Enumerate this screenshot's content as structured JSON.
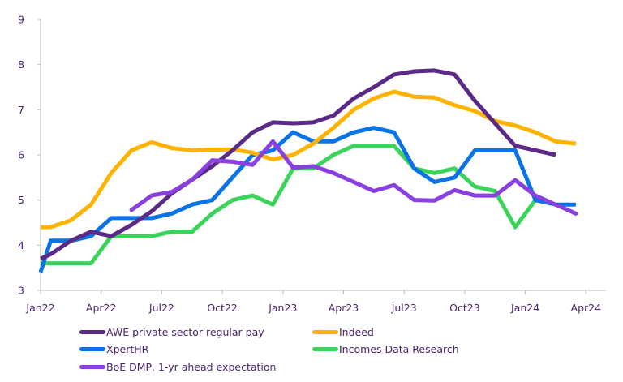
{
  "chart_data": {
    "type": "line",
    "title": "",
    "xlabel": "",
    "ylabel": "",
    "ylim": [
      3,
      9
    ],
    "yticks": [
      "3",
      "4",
      "5",
      "6",
      "7",
      "8",
      "9"
    ],
    "xticks": [
      "Jan22",
      "Apr22",
      "Jul22",
      "Oct22",
      "Jan23",
      "Apr23",
      "Jul23",
      "Oct23",
      "Jan24",
      "Apr24"
    ],
    "x_months_from_jan22": [
      0,
      0.5,
      1.5,
      2.5,
      3.5,
      4.5,
      5.5,
      6.5,
      7.5,
      8.5,
      9.5,
      10.5,
      11.5,
      12.5,
      13.5,
      14.5,
      15.5,
      16.5,
      17.5,
      18.5,
      19.5,
      20.5,
      21.5,
      22.5,
      23.5,
      24.5,
      25.5,
      26.5
    ],
    "grid": false,
    "legend_position": "bottom",
    "series": [
      {
        "name": "AWE private sector regular pay",
        "color": "#5b2a86",
        "values": [
          3.7,
          3.8,
          4.1,
          4.3,
          4.2,
          4.45,
          4.75,
          5.15,
          5.45,
          5.75,
          6.1,
          6.5,
          6.72,
          6.7,
          6.72,
          6.87,
          7.25,
          7.5,
          7.78,
          7.85,
          7.87,
          7.78,
          7.2,
          6.7,
          6.2,
          6.1,
          6.0,
          null
        ]
      },
      {
        "name": "Indeed",
        "color": "#ffb300",
        "values": [
          4.4,
          4.4,
          4.55,
          4.9,
          5.6,
          6.1,
          6.28,
          6.15,
          6.1,
          6.12,
          6.12,
          6.05,
          5.9,
          6.0,
          6.25,
          6.6,
          7.0,
          7.25,
          7.4,
          7.29,
          7.27,
          7.1,
          6.97,
          6.75,
          6.65,
          6.5,
          6.3,
          6.25
        ]
      },
      {
        "name": "XpertHR",
        "color": "#0a73e6",
        "values": [
          3.4,
          4.1,
          4.1,
          4.2,
          4.6,
          4.6,
          4.6,
          4.7,
          4.9,
          5.0,
          5.5,
          6.0,
          6.1,
          6.5,
          6.3,
          6.3,
          6.5,
          6.6,
          6.5,
          5.7,
          5.4,
          5.5,
          6.1,
          6.1,
          6.1,
          5.0,
          4.9,
          4.9
        ]
      },
      {
        "name": "Incomes Data Research",
        "color": "#3ad45a",
        "values": [
          3.6,
          3.6,
          3.6,
          3.6,
          4.2,
          4.2,
          4.2,
          4.3,
          4.3,
          4.7,
          5.0,
          5.1,
          4.9,
          5.7,
          5.7,
          6.0,
          6.2,
          6.2,
          6.2,
          5.7,
          5.6,
          5.7,
          5.3,
          5.2,
          4.4,
          5.0,
          null,
          null
        ]
      },
      {
        "name": "BoE DMP, 1-yr ahead expectation",
        "color": "#8a3fe0",
        "values": [
          null,
          null,
          null,
          null,
          null,
          4.78,
          5.1,
          5.18,
          5.45,
          5.88,
          5.85,
          5.78,
          6.3,
          5.72,
          5.75,
          5.6,
          5.4,
          5.2,
          5.33,
          5.0,
          4.99,
          5.22,
          5.1,
          5.1,
          5.44,
          5.1,
          4.9,
          4.7
        ]
      }
    ]
  }
}
